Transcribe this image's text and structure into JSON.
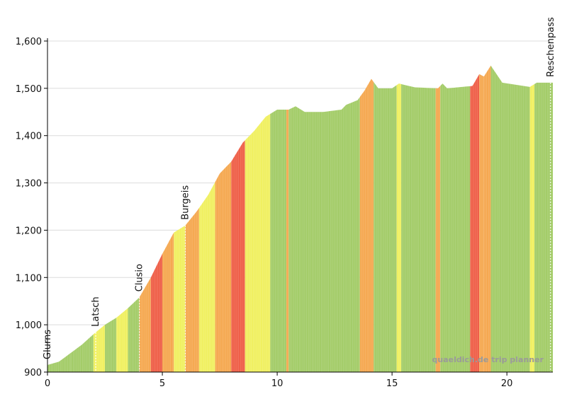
{
  "chart_data": {
    "type": "area",
    "xlim": [
      0,
      22
    ],
    "ylim": [
      900,
      1600
    ],
    "x_ticks": [
      0,
      5,
      10,
      15,
      20
    ],
    "x_tick_labels": [
      "0",
      "5",
      "10",
      "15",
      "20"
    ],
    "y_ticks": [
      900,
      1000,
      1100,
      1200,
      1300,
      1400,
      1500,
      1600
    ],
    "y_tick_labels": [
      "900",
      "1,000",
      "1,100",
      "1,200",
      "1,300",
      "1,400",
      "1,500",
      "1,600"
    ],
    "grid": true,
    "profile": [
      {
        "x": 0.0,
        "y": 915
      },
      {
        "x": 0.5,
        "y": 922
      },
      {
        "x": 1.0,
        "y": 940
      },
      {
        "x": 1.5,
        "y": 958
      },
      {
        "x": 2.0,
        "y": 980
      },
      {
        "x": 2.5,
        "y": 1000
      },
      {
        "x": 3.0,
        "y": 1015
      },
      {
        "x": 3.5,
        "y": 1035
      },
      {
        "x": 4.0,
        "y": 1058
      },
      {
        "x": 4.5,
        "y": 1100
      },
      {
        "x": 5.0,
        "y": 1150
      },
      {
        "x": 5.5,
        "y": 1195
      },
      {
        "x": 6.0,
        "y": 1210
      },
      {
        "x": 6.5,
        "y": 1240
      },
      {
        "x": 7.0,
        "y": 1275
      },
      {
        "x": 7.5,
        "y": 1320
      },
      {
        "x": 8.0,
        "y": 1345
      },
      {
        "x": 8.5,
        "y": 1385
      },
      {
        "x": 9.0,
        "y": 1410
      },
      {
        "x": 9.5,
        "y": 1440
      },
      {
        "x": 10.0,
        "y": 1455
      },
      {
        "x": 10.5,
        "y": 1455
      },
      {
        "x": 10.8,
        "y": 1462
      },
      {
        "x": 11.2,
        "y": 1450
      },
      {
        "x": 12.0,
        "y": 1450
      },
      {
        "x": 12.8,
        "y": 1455
      },
      {
        "x": 13.0,
        "y": 1465
      },
      {
        "x": 13.5,
        "y": 1475
      },
      {
        "x": 13.8,
        "y": 1495
      },
      {
        "x": 14.1,
        "y": 1520
      },
      {
        "x": 14.4,
        "y": 1500
      },
      {
        "x": 15.0,
        "y": 1500
      },
      {
        "x": 15.3,
        "y": 1510
      },
      {
        "x": 16.0,
        "y": 1502
      },
      {
        "x": 17.0,
        "y": 1500
      },
      {
        "x": 17.2,
        "y": 1510
      },
      {
        "x": 17.4,
        "y": 1500
      },
      {
        "x": 18.5,
        "y": 1505
      },
      {
        "x": 18.8,
        "y": 1530
      },
      {
        "x": 19.0,
        "y": 1525
      },
      {
        "x": 19.3,
        "y": 1548
      },
      {
        "x": 19.8,
        "y": 1512
      },
      {
        "x": 21.0,
        "y": 1503
      },
      {
        "x": 21.3,
        "y": 1512
      },
      {
        "x": 21.9,
        "y": 1512
      }
    ],
    "gradient_segments": [
      {
        "from": 0.0,
        "to": 1.0,
        "grade": "low"
      },
      {
        "from": 1.0,
        "to": 2.0,
        "grade": "low"
      },
      {
        "from": 2.0,
        "to": 2.5,
        "grade": "medium"
      },
      {
        "from": 2.5,
        "to": 3.0,
        "grade": "low"
      },
      {
        "from": 3.0,
        "to": 3.5,
        "grade": "medium"
      },
      {
        "from": 3.5,
        "to": 4.0,
        "grade": "low"
      },
      {
        "from": 4.0,
        "to": 4.5,
        "grade": "high"
      },
      {
        "from": 4.5,
        "to": 5.0,
        "grade": "steep"
      },
      {
        "from": 5.0,
        "to": 5.5,
        "grade": "high"
      },
      {
        "from": 5.5,
        "to": 6.0,
        "grade": "medium"
      },
      {
        "from": 6.0,
        "to": 6.6,
        "grade": "high"
      },
      {
        "from": 6.6,
        "to": 7.3,
        "grade": "medium"
      },
      {
        "from": 7.3,
        "to": 8.0,
        "grade": "high"
      },
      {
        "from": 8.0,
        "to": 8.6,
        "grade": "steep"
      },
      {
        "from": 8.6,
        "to": 9.7,
        "grade": "medium"
      },
      {
        "from": 9.7,
        "to": 10.4,
        "grade": "low"
      },
      {
        "from": 10.4,
        "to": 10.5,
        "grade": "high"
      },
      {
        "from": 10.5,
        "to": 13.6,
        "grade": "low"
      },
      {
        "from": 13.6,
        "to": 14.2,
        "grade": "high"
      },
      {
        "from": 14.2,
        "to": 15.2,
        "grade": "low"
      },
      {
        "from": 15.2,
        "to": 15.4,
        "grade": "medium"
      },
      {
        "from": 15.4,
        "to": 16.9,
        "grade": "low"
      },
      {
        "from": 16.9,
        "to": 17.1,
        "grade": "high"
      },
      {
        "from": 17.1,
        "to": 18.4,
        "grade": "low"
      },
      {
        "from": 18.4,
        "to": 18.8,
        "grade": "steep"
      },
      {
        "from": 18.8,
        "to": 19.0,
        "grade": "high"
      },
      {
        "from": 19.0,
        "to": 19.3,
        "grade": "high"
      },
      {
        "from": 19.3,
        "to": 21.0,
        "grade": "low"
      },
      {
        "from": 21.0,
        "to": 21.2,
        "grade": "medium"
      },
      {
        "from": 21.2,
        "to": 22.0,
        "grade": "low"
      }
    ],
    "grade_colors": {
      "low": "#a3cc68",
      "medium": "#f0f060",
      "high": "#f5a850",
      "steep": "#ef5f48"
    },
    "waypoints": [
      {
        "label": "Glurns",
        "x": 0.0
      },
      {
        "label": "Latsch",
        "x": 2.1
      },
      {
        "label": "Clusio",
        "x": 4.0
      },
      {
        "label": "Burgeis",
        "x": 6.0
      },
      {
        "label": "Reschenpass",
        "x": 21.9
      }
    ],
    "watermark": "quaeldich.de trip planner"
  }
}
